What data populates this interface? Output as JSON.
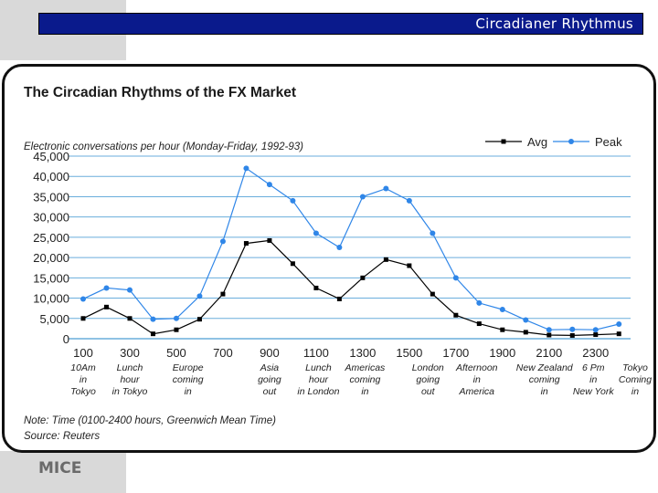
{
  "header": {
    "title": "Circadianer Rhythmus"
  },
  "footer": {
    "logo": "MICE"
  },
  "colors": {
    "header_bg": "#0a1a8c",
    "avg": "#000000",
    "peak": "#2f86e8",
    "grid": "#6aaedc"
  },
  "chart_data": {
    "type": "line",
    "title": "The Circadian Rhythms of the FX Market",
    "ylabel": "Electronic conversations per hour (Monday-Friday, 1992-93)",
    "xlabel": "",
    "ylim": [
      0,
      45000
    ],
    "yticks": [
      0,
      5000,
      10000,
      15000,
      20000,
      25000,
      30000,
      35000,
      40000,
      45000
    ],
    "ytick_labels": [
      "0",
      "5,000",
      "10,000",
      "15,000",
      "20,000",
      "25,000",
      "30,000",
      "35,000",
      "40,000",
      "45,000"
    ],
    "x": [
      100,
      200,
      300,
      400,
      500,
      600,
      700,
      800,
      900,
      1000,
      1100,
      1200,
      1300,
      1400,
      1500,
      1600,
      1700,
      1800,
      1900,
      2000,
      2100,
      2200,
      2300,
      2400
    ],
    "xticks": [
      100,
      300,
      500,
      700,
      900,
      1100,
      1300,
      1500,
      1700,
      1900,
      2100,
      2300
    ],
    "xtick_labels": [
      "100",
      "300",
      "500",
      "700",
      "900",
      "1100",
      "1300",
      "1500",
      "1700",
      "1900",
      "2100",
      "2300"
    ],
    "series": [
      {
        "name": "Avg",
        "values": [
          5000,
          7800,
          5000,
          1200,
          2200,
          4800,
          11000,
          23500,
          24200,
          18500,
          12500,
          9800,
          15000,
          19500,
          18000,
          11000,
          5800,
          3700,
          2200,
          1600,
          900,
          800,
          1000,
          1200
        ]
      },
      {
        "name": "Peak",
        "values": [
          9800,
          12500,
          12000,
          4800,
          5000,
          10500,
          24000,
          42000,
          38000,
          34000,
          26000,
          22500,
          35000,
          37000,
          34000,
          26000,
          15000,
          8800,
          7200,
          4600,
          2200,
          2300,
          2200,
          3600
        ]
      }
    ],
    "legend": [
      "Avg",
      "Peak"
    ],
    "annotations": [
      {
        "x": 100,
        "lines": [
          "10Am",
          "in",
          "Tokyo"
        ]
      },
      {
        "x": 300,
        "lines": [
          "Lunch",
          "hour",
          "in Tokyo"
        ]
      },
      {
        "x": 550,
        "lines": [
          "Europe",
          "coming",
          "in"
        ]
      },
      {
        "x": 900,
        "lines": [
          "Asia",
          "going",
          "out"
        ]
      },
      {
        "x": 1110,
        "lines": [
          "Lunch",
          "hour",
          "in London"
        ]
      },
      {
        "x": 1310,
        "lines": [
          "Americas",
          "coming",
          "in"
        ]
      },
      {
        "x": 1580,
        "lines": [
          "London",
          "going",
          "out"
        ]
      },
      {
        "x": 1790,
        "lines": [
          "Afternoon",
          "in",
          "America"
        ]
      },
      {
        "x": 2080,
        "lines": [
          "New Zealand",
          "coming",
          "in"
        ]
      },
      {
        "x": 2290,
        "lines": [
          "6 Pm",
          "in",
          "New York"
        ]
      },
      {
        "x": 2500,
        "lines": [
          "Tokyo",
          "Coming",
          "in"
        ]
      }
    ],
    "note": "Note: Time (0100-2400 hours, Greenwich Mean Time)",
    "source": "Source: Reuters"
  }
}
